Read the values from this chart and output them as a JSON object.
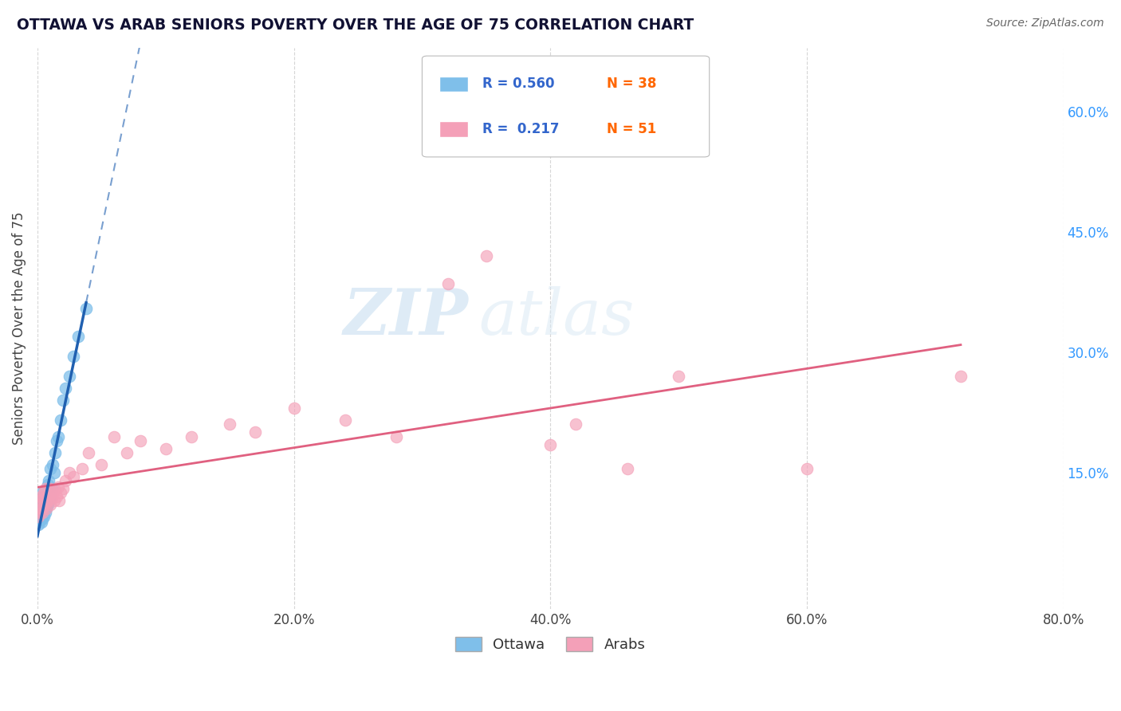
{
  "title": "OTTAWA VS ARAB SENIORS POVERTY OVER THE AGE OF 75 CORRELATION CHART",
  "source": "Source: ZipAtlas.com",
  "ylabel": "Seniors Poverty Over the Age of 75",
  "xlim": [
    0.0,
    0.8
  ],
  "ylim": [
    -0.02,
    0.68
  ],
  "xticks": [
    0.0,
    0.2,
    0.4,
    0.6,
    0.8
  ],
  "xticklabels": [
    "0.0%",
    "20.0%",
    "40.0%",
    "60.0%",
    "80.0%"
  ],
  "yticks_right": [
    0.15,
    0.3,
    0.45,
    0.6
  ],
  "yticklabels_right": [
    "15.0%",
    "30.0%",
    "45.0%",
    "60.0%"
  ],
  "color_ottawa": "#7fbfea",
  "color_arabs": "#f4a0b8",
  "color_line_ottawa": "#2060b0",
  "color_line_arabs": "#e06080",
  "watermark_zip": "ZIP",
  "watermark_atlas": "atlas",
  "background_color": "#ffffff",
  "grid_color": "#cccccc",
  "ottawa_x": [
    0.001,
    0.001,
    0.002,
    0.002,
    0.002,
    0.003,
    0.003,
    0.003,
    0.004,
    0.004,
    0.004,
    0.004,
    0.005,
    0.005,
    0.005,
    0.006,
    0.006,
    0.007,
    0.007,
    0.008,
    0.008,
    0.009,
    0.009,
    0.01,
    0.01,
    0.011,
    0.012,
    0.013,
    0.014,
    0.015,
    0.016,
    0.018,
    0.02,
    0.022,
    0.025,
    0.028,
    0.032,
    0.038
  ],
  "ottawa_y": [
    0.085,
    0.095,
    0.09,
    0.1,
    0.11,
    0.088,
    0.095,
    0.105,
    0.092,
    0.1,
    0.115,
    0.125,
    0.095,
    0.108,
    0.12,
    0.1,
    0.115,
    0.105,
    0.12,
    0.11,
    0.135,
    0.115,
    0.14,
    0.12,
    0.155,
    0.13,
    0.16,
    0.15,
    0.175,
    0.19,
    0.195,
    0.215,
    0.24,
    0.255,
    0.27,
    0.295,
    0.32,
    0.355
  ],
  "arabs_x": [
    0.001,
    0.001,
    0.002,
    0.002,
    0.003,
    0.003,
    0.004,
    0.004,
    0.005,
    0.005,
    0.006,
    0.006,
    0.007,
    0.007,
    0.008,
    0.009,
    0.01,
    0.01,
    0.011,
    0.012,
    0.013,
    0.014,
    0.015,
    0.016,
    0.017,
    0.018,
    0.02,
    0.022,
    0.025,
    0.028,
    0.035,
    0.04,
    0.05,
    0.06,
    0.07,
    0.08,
    0.1,
    0.12,
    0.15,
    0.17,
    0.2,
    0.24,
    0.28,
    0.32,
    0.35,
    0.4,
    0.42,
    0.46,
    0.5,
    0.6,
    0.72
  ],
  "arabs_y": [
    0.095,
    0.11,
    0.1,
    0.115,
    0.105,
    0.12,
    0.1,
    0.118,
    0.108,
    0.125,
    0.112,
    0.13,
    0.105,
    0.12,
    0.115,
    0.122,
    0.11,
    0.13,
    0.118,
    0.125,
    0.115,
    0.128,
    0.12,
    0.132,
    0.115,
    0.125,
    0.13,
    0.14,
    0.15,
    0.145,
    0.155,
    0.175,
    0.16,
    0.195,
    0.175,
    0.19,
    0.18,
    0.195,
    0.21,
    0.2,
    0.23,
    0.215,
    0.195,
    0.385,
    0.42,
    0.185,
    0.21,
    0.155,
    0.27,
    0.155,
    0.27
  ]
}
